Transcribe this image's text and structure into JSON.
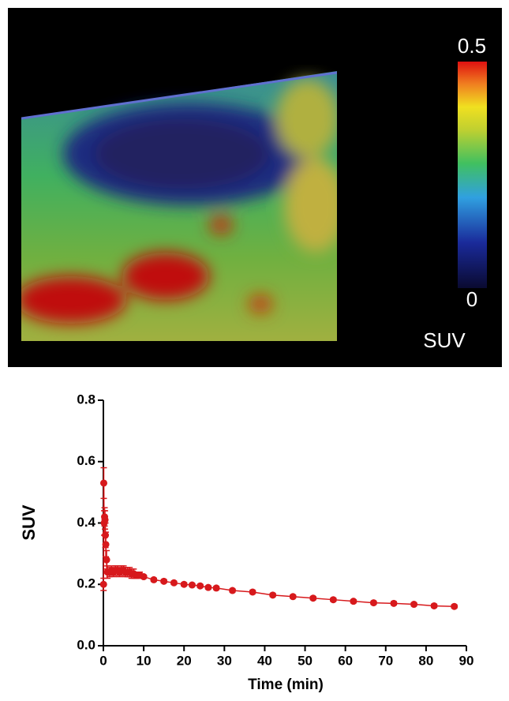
{
  "image": {
    "colorbar": {
      "max_label": "0.5",
      "min_label": "0",
      "unit": "SUV"
    }
  },
  "chart_data": {
    "type": "line",
    "xlabel": "Time (min)",
    "ylabel": "SUV",
    "xlim": [
      0,
      90
    ],
    "ylim": [
      0,
      0.8
    ],
    "xticks": [
      0,
      10,
      20,
      30,
      40,
      50,
      60,
      70,
      80,
      90
    ],
    "yticks": [
      {
        "value": 0,
        "label": "0.0"
      },
      0.2,
      0.4,
      0.6,
      0.8
    ],
    "x": [
      0.05,
      0.1,
      0.2,
      0.3,
      0.4,
      0.5,
      0.6,
      0.8,
      1.0,
      1.5,
      2,
      2.5,
      3,
      3.5,
      4,
      4.5,
      5,
      5.5,
      6,
      6.5,
      7,
      7.5,
      8,
      8.5,
      9,
      10,
      12.5,
      15,
      17.5,
      20,
      22,
      24,
      26,
      28,
      32,
      37,
      42,
      47,
      52,
      57,
      62,
      67,
      72,
      77,
      82,
      87
    ],
    "series": [
      {
        "color": "#d7191c",
        "values": [
          0.2,
          0.53,
          0.4,
          0.42,
          0.41,
          0.36,
          0.33,
          0.28,
          0.24,
          0.24,
          0.245,
          0.24,
          0.245,
          0.245,
          0.24,
          0.245,
          0.245,
          0.24,
          0.24,
          0.24,
          0.235,
          0.235,
          0.23,
          0.23,
          0.23,
          0.225,
          0.215,
          0.21,
          0.205,
          0.2,
          0.198,
          0.195,
          0.19,
          0.188,
          0.18,
          0.175,
          0.165,
          0.16,
          0.155,
          0.15,
          0.145,
          0.14,
          0.138,
          0.135,
          0.13,
          0.128
        ],
        "errors": [
          0.02,
          0.05,
          0.04,
          0.03,
          0.03,
          0.04,
          0.04,
          0.03,
          0.02,
          0.015,
          0.015,
          0.015,
          0.015,
          0.015,
          0.015,
          0.015,
          0.015,
          0.015,
          0.015,
          0.015,
          0.015,
          0.015,
          0.01,
          0.01,
          0.01,
          0.005,
          0.005,
          0.005,
          0.005,
          0.005,
          0.005,
          0.005,
          0.005,
          0.005,
          0.005,
          0.005,
          0.005,
          0.005,
          0.005,
          0.005,
          0.005,
          0.005,
          0.005,
          0.005,
          0.005,
          0.005
        ]
      }
    ]
  }
}
